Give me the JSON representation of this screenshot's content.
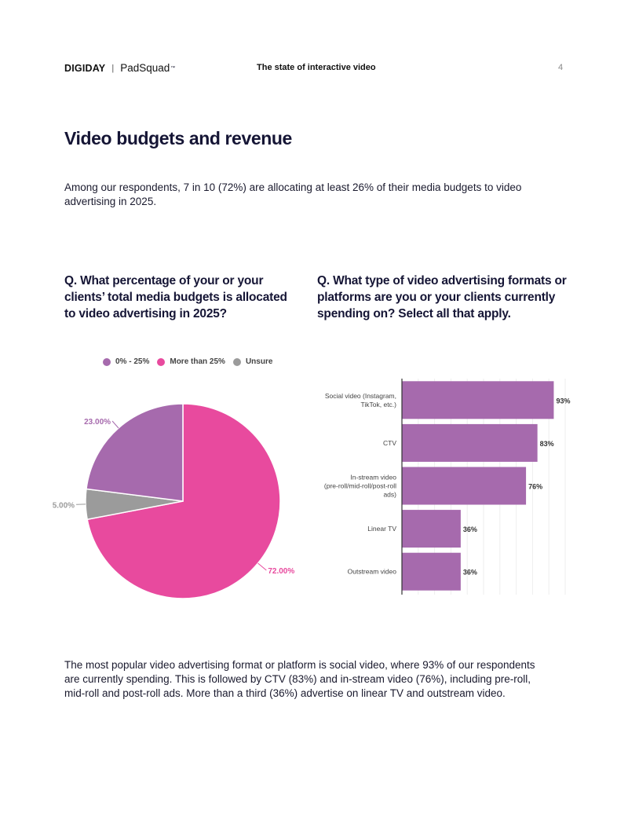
{
  "header": {
    "brand_left": "DIGIDAY",
    "separator": "|",
    "brand_right": "PadSquad",
    "trademark": "™",
    "report_title": "The state of interactive video",
    "page_number": "4"
  },
  "section_title": "Video budgets and revenue",
  "intro": "Among our respondents, 7 in 10 (72%) are allocating at least 26% of their media budgets to video advertising in 2025.",
  "question_left": "Q. What percentage of your or your clients’ total media budgets is allocated to video advertising in 2025?",
  "question_right": "Q. What type of video advertising formats or platforms are you or your clients currently spending on? Select all that apply.",
  "outro": "The most popular video advertising format or platform is social video, where 93% of our respondents are currently spending. This is followed by CTV (83%) and in-stream video (76%), including pre-roll, mid-roll and post-roll ads. More than a third (36%) advertise on linear TV and outstream video.",
  "chart_data": [
    {
      "type": "pie",
      "title": "",
      "labels": [
        "0% - 25%",
        "More than 25%",
        "Unsure"
      ],
      "values": [
        23,
        72,
        5
      ],
      "data_labels": [
        "23.00%",
        "72.00%",
        "5.00%"
      ],
      "colors": [
        "#a66aad",
        "#e84a9e",
        "#9b9b9b"
      ],
      "legend_position": "top"
    },
    {
      "type": "bar",
      "orientation": "horizontal",
      "title": "",
      "categories": [
        [
          "Social video (Instagram,",
          "TikTok, etc.)"
        ],
        [
          "CTV"
        ],
        [
          "In-stream video",
          "(pre-roll/mid-roll/post-roll",
          "ads)"
        ],
        [
          "Linear TV"
        ],
        [
          "Outstream video"
        ]
      ],
      "values": [
        93,
        83,
        76,
        36,
        36
      ],
      "data_labels": [
        "93%",
        "83%",
        "76%",
        "36%",
        "36%"
      ],
      "xlim": [
        0,
        100
      ],
      "grid": true,
      "bar_color": "#a66aad"
    }
  ]
}
